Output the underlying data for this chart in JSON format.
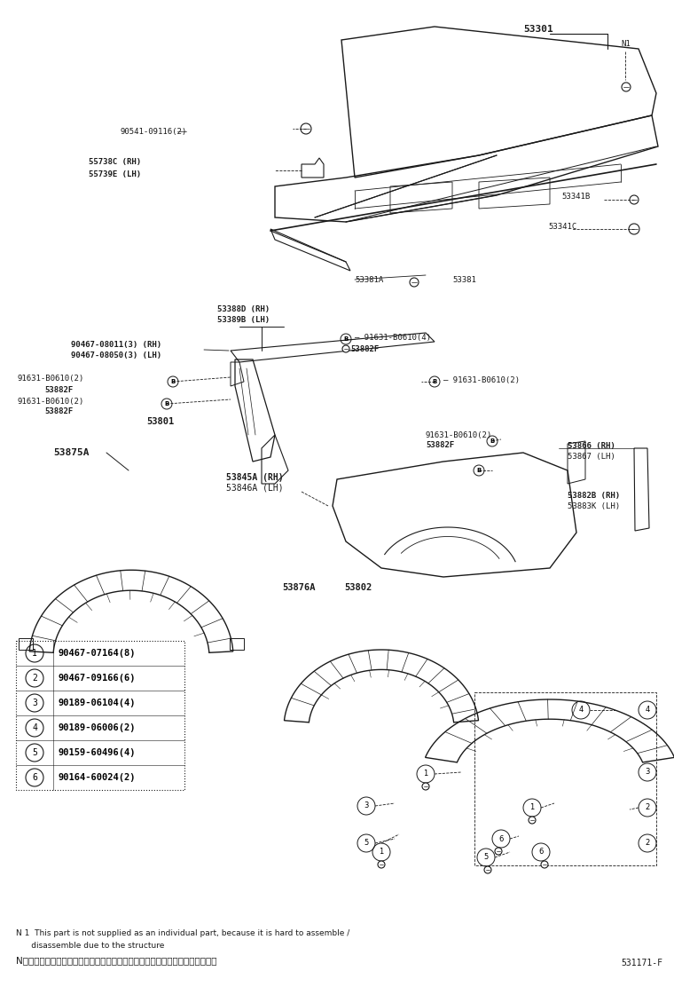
{
  "bg_color": "#ffffff",
  "line_color": "#1a1a1a",
  "fig_width": 7.6,
  "fig_height": 11.12,
  "dpi": 100,
  "part_number_ref": "531171-F",
  "note_en_1": "N 1  This part is not supplied as an individual part, because it is hard to assemble /",
  "note_en_2": "      disassemble due to the structure",
  "note_jp": "N１この部品は、構造上分解・組付けが困難なため、単品では補給していません",
  "legend_items": [
    {
      "num": "1",
      "code": "90467-07164(8)"
    },
    {
      "num": "2",
      "code": "90467-09166(6)"
    },
    {
      "num": "3",
      "code": "90189-06104(4)"
    },
    {
      "num": "4",
      "code": "90189-06006(2)"
    },
    {
      "num": "5",
      "code": "90159-60496(4)"
    },
    {
      "num": "6",
      "code": "90164-60024(2)"
    }
  ]
}
